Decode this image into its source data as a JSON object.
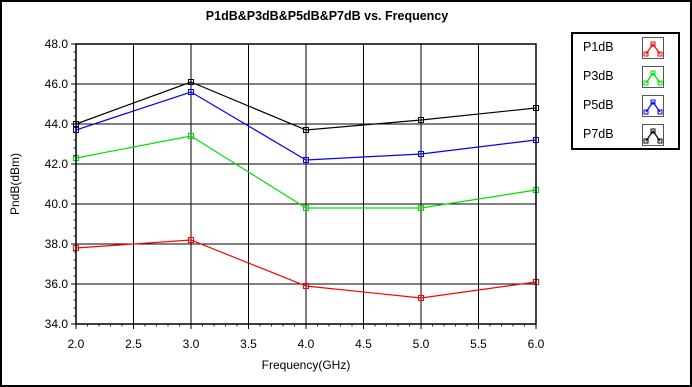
{
  "chart_data": {
    "type": "line",
    "title": "P1dB&P3dB&P5dB&P7dB vs. Frequency",
    "xlabel": "Frequency(GHz)",
    "ylabel": "PndB(dBm)",
    "xlim": [
      2.0,
      6.0
    ],
    "ylim": [
      34.0,
      48.0
    ],
    "x_ticks": [
      "2.0",
      "2.5",
      "3.0",
      "3.5",
      "4.0",
      "4.5",
      "5.0",
      "5.5",
      "6.0"
    ],
    "y_ticks": [
      "34.0",
      "36.0",
      "38.0",
      "40.0",
      "42.0",
      "44.0",
      "46.0",
      "48.0"
    ],
    "grid": true,
    "legend_position": "right",
    "x": [
      2.0,
      3.0,
      4.0,
      5.0,
      6.0
    ],
    "series": [
      {
        "name": "P1dB",
        "color": "#ff0000",
        "values": [
          37.8,
          38.2,
          35.9,
          35.3,
          36.1
        ]
      },
      {
        "name": "P3dB",
        "color": "#00e000",
        "values": [
          42.3,
          43.4,
          39.8,
          39.8,
          40.7
        ]
      },
      {
        "name": "P5dB",
        "color": "#0000ff",
        "values": [
          43.7,
          45.6,
          42.2,
          42.5,
          43.2
        ]
      },
      {
        "name": "P7dB",
        "color": "#000000",
        "values": [
          44.0,
          46.1,
          43.7,
          44.2,
          44.8
        ]
      }
    ]
  }
}
